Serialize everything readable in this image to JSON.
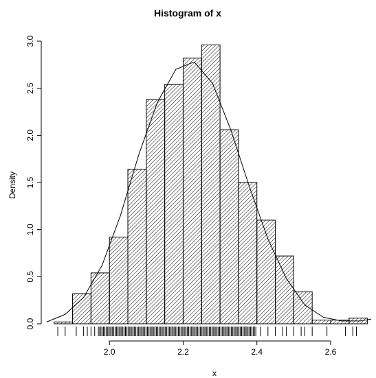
{
  "chart_data": {
    "type": "histogram",
    "title": "Histogram of x",
    "xlabel": "x",
    "ylabel": "Density",
    "xlim": [
      1.83,
      2.71
    ],
    "ylim": [
      0,
      3.0
    ],
    "x_ticks": [
      "2.0",
      "2.2",
      "2.4",
      "2.6"
    ],
    "x_tick_values": [
      2.0,
      2.2,
      2.4,
      2.6
    ],
    "y_ticks": [
      "0.0",
      "0.5",
      "1.0",
      "1.5",
      "2.0",
      "2.5",
      "3.0"
    ],
    "y_tick_values": [
      0,
      0.5,
      1.0,
      1.5,
      2.0,
      2.5,
      3.0
    ],
    "bin_edges": [
      1.85,
      1.9,
      1.95,
      2.0,
      2.05,
      2.1,
      2.15,
      2.2,
      2.25,
      2.3,
      2.35,
      2.4,
      2.45,
      2.5,
      2.55,
      2.6,
      2.65,
      2.7
    ],
    "density": [
      0.02,
      0.32,
      0.54,
      0.92,
      1.64,
      2.38,
      2.54,
      2.82,
      2.96,
      2.06,
      1.5,
      1.1,
      0.72,
      0.34,
      0.04,
      0.04,
      0.06
    ],
    "fill_pattern": "diagonal hatch",
    "density_curve": {
      "x": [
        1.83,
        1.88,
        1.93,
        1.98,
        2.03,
        2.08,
        2.13,
        2.18,
        2.23,
        2.28,
        2.33,
        2.38,
        2.43,
        2.48,
        2.53,
        2.58,
        2.63,
        2.68,
        2.71
      ],
      "y": [
        0.02,
        0.1,
        0.28,
        0.62,
        1.15,
        1.8,
        2.35,
        2.7,
        2.78,
        2.55,
        2.05,
        1.45,
        0.9,
        0.48,
        0.2,
        0.07,
        0.03,
        0.03,
        0.05
      ]
    },
    "rug": {
      "dense_range": [
        1.97,
        2.4
      ],
      "sparse_values": [
        1.86,
        1.88,
        1.91,
        1.93,
        1.94,
        1.95,
        1.96,
        2.41,
        2.43,
        2.45,
        2.47,
        2.48,
        2.5,
        2.52,
        2.53,
        2.55,
        2.59,
        2.64,
        2.66,
        2.67
      ]
    },
    "grid": false,
    "colors": {
      "bar_stroke": "#000000",
      "hatch": "#000000",
      "curve": "#000000",
      "background": "#ffffff"
    }
  }
}
